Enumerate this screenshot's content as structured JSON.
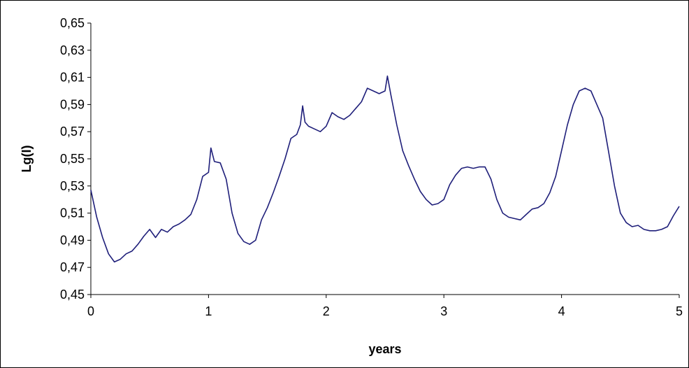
{
  "chart_data": {
    "type": "line",
    "title": "",
    "xlabel": "years",
    "ylabel": "Lg(I)",
    "xlim": [
      0,
      5
    ],
    "ylim": [
      0.45,
      0.65
    ],
    "x_ticks": [
      "0",
      "1",
      "2",
      "3",
      "4",
      "5"
    ],
    "y_ticks": [
      "0,45",
      "0,47",
      "0,49",
      "0,51",
      "0,53",
      "0,55",
      "0,57",
      "0,59",
      "0,61",
      "0,63",
      "0,65"
    ],
    "grid": false,
    "legend": "none",
    "line_color": "#1f1f7a",
    "series": [
      {
        "x": [
          0.0,
          0.05,
          0.1,
          0.15,
          0.2,
          0.25,
          0.3,
          0.35,
          0.4,
          0.45,
          0.5,
          0.55,
          0.6,
          0.65,
          0.7,
          0.75,
          0.8,
          0.85,
          0.9,
          0.95,
          1.0,
          1.02,
          1.05,
          1.1,
          1.15,
          1.2,
          1.25,
          1.3,
          1.35,
          1.4,
          1.45,
          1.5,
          1.55,
          1.6,
          1.65,
          1.7,
          1.75,
          1.78,
          1.8,
          1.82,
          1.85,
          1.9,
          1.95,
          2.0,
          2.05,
          2.1,
          2.15,
          2.2,
          2.25,
          2.3,
          2.35,
          2.4,
          2.45,
          2.5,
          2.52,
          2.55,
          2.6,
          2.65,
          2.7,
          2.75,
          2.8,
          2.85,
          2.9,
          2.95,
          3.0,
          3.05,
          3.1,
          3.15,
          3.2,
          3.25,
          3.3,
          3.35,
          3.4,
          3.45,
          3.5,
          3.55,
          3.6,
          3.65,
          3.7,
          3.75,
          3.8,
          3.85,
          3.9,
          3.95,
          4.0,
          4.05,
          4.1,
          4.15,
          4.2,
          4.25,
          4.3,
          4.35,
          4.4,
          4.45,
          4.5,
          4.55,
          4.6,
          4.65,
          4.7,
          4.75,
          4.8,
          4.85,
          4.9,
          4.95,
          5.0
        ],
        "y": [
          0.527,
          0.507,
          0.492,
          0.48,
          0.474,
          0.476,
          0.48,
          0.482,
          0.487,
          0.493,
          0.498,
          0.492,
          0.498,
          0.496,
          0.5,
          0.502,
          0.505,
          0.509,
          0.52,
          0.537,
          0.54,
          0.558,
          0.548,
          0.547,
          0.535,
          0.51,
          0.495,
          0.489,
          0.487,
          0.49,
          0.505,
          0.514,
          0.525,
          0.537,
          0.55,
          0.565,
          0.568,
          0.575,
          0.589,
          0.577,
          0.574,
          0.572,
          0.57,
          0.574,
          0.584,
          0.581,
          0.579,
          0.582,
          0.587,
          0.592,
          0.602,
          0.6,
          0.598,
          0.6,
          0.611,
          0.597,
          0.575,
          0.556,
          0.545,
          0.535,
          0.526,
          0.52,
          0.516,
          0.517,
          0.52,
          0.531,
          0.538,
          0.543,
          0.544,
          0.543,
          0.544,
          0.544,
          0.535,
          0.52,
          0.51,
          0.507,
          0.506,
          0.505,
          0.509,
          0.513,
          0.514,
          0.517,
          0.525,
          0.537,
          0.556,
          0.575,
          0.59,
          0.6,
          0.602,
          0.6,
          0.59,
          0.58,
          0.555,
          0.53,
          0.51,
          0.503,
          0.5,
          0.501,
          0.498,
          0.497,
          0.497,
          0.498,
          0.5,
          0.508,
          0.515
        ]
      }
    ]
  }
}
